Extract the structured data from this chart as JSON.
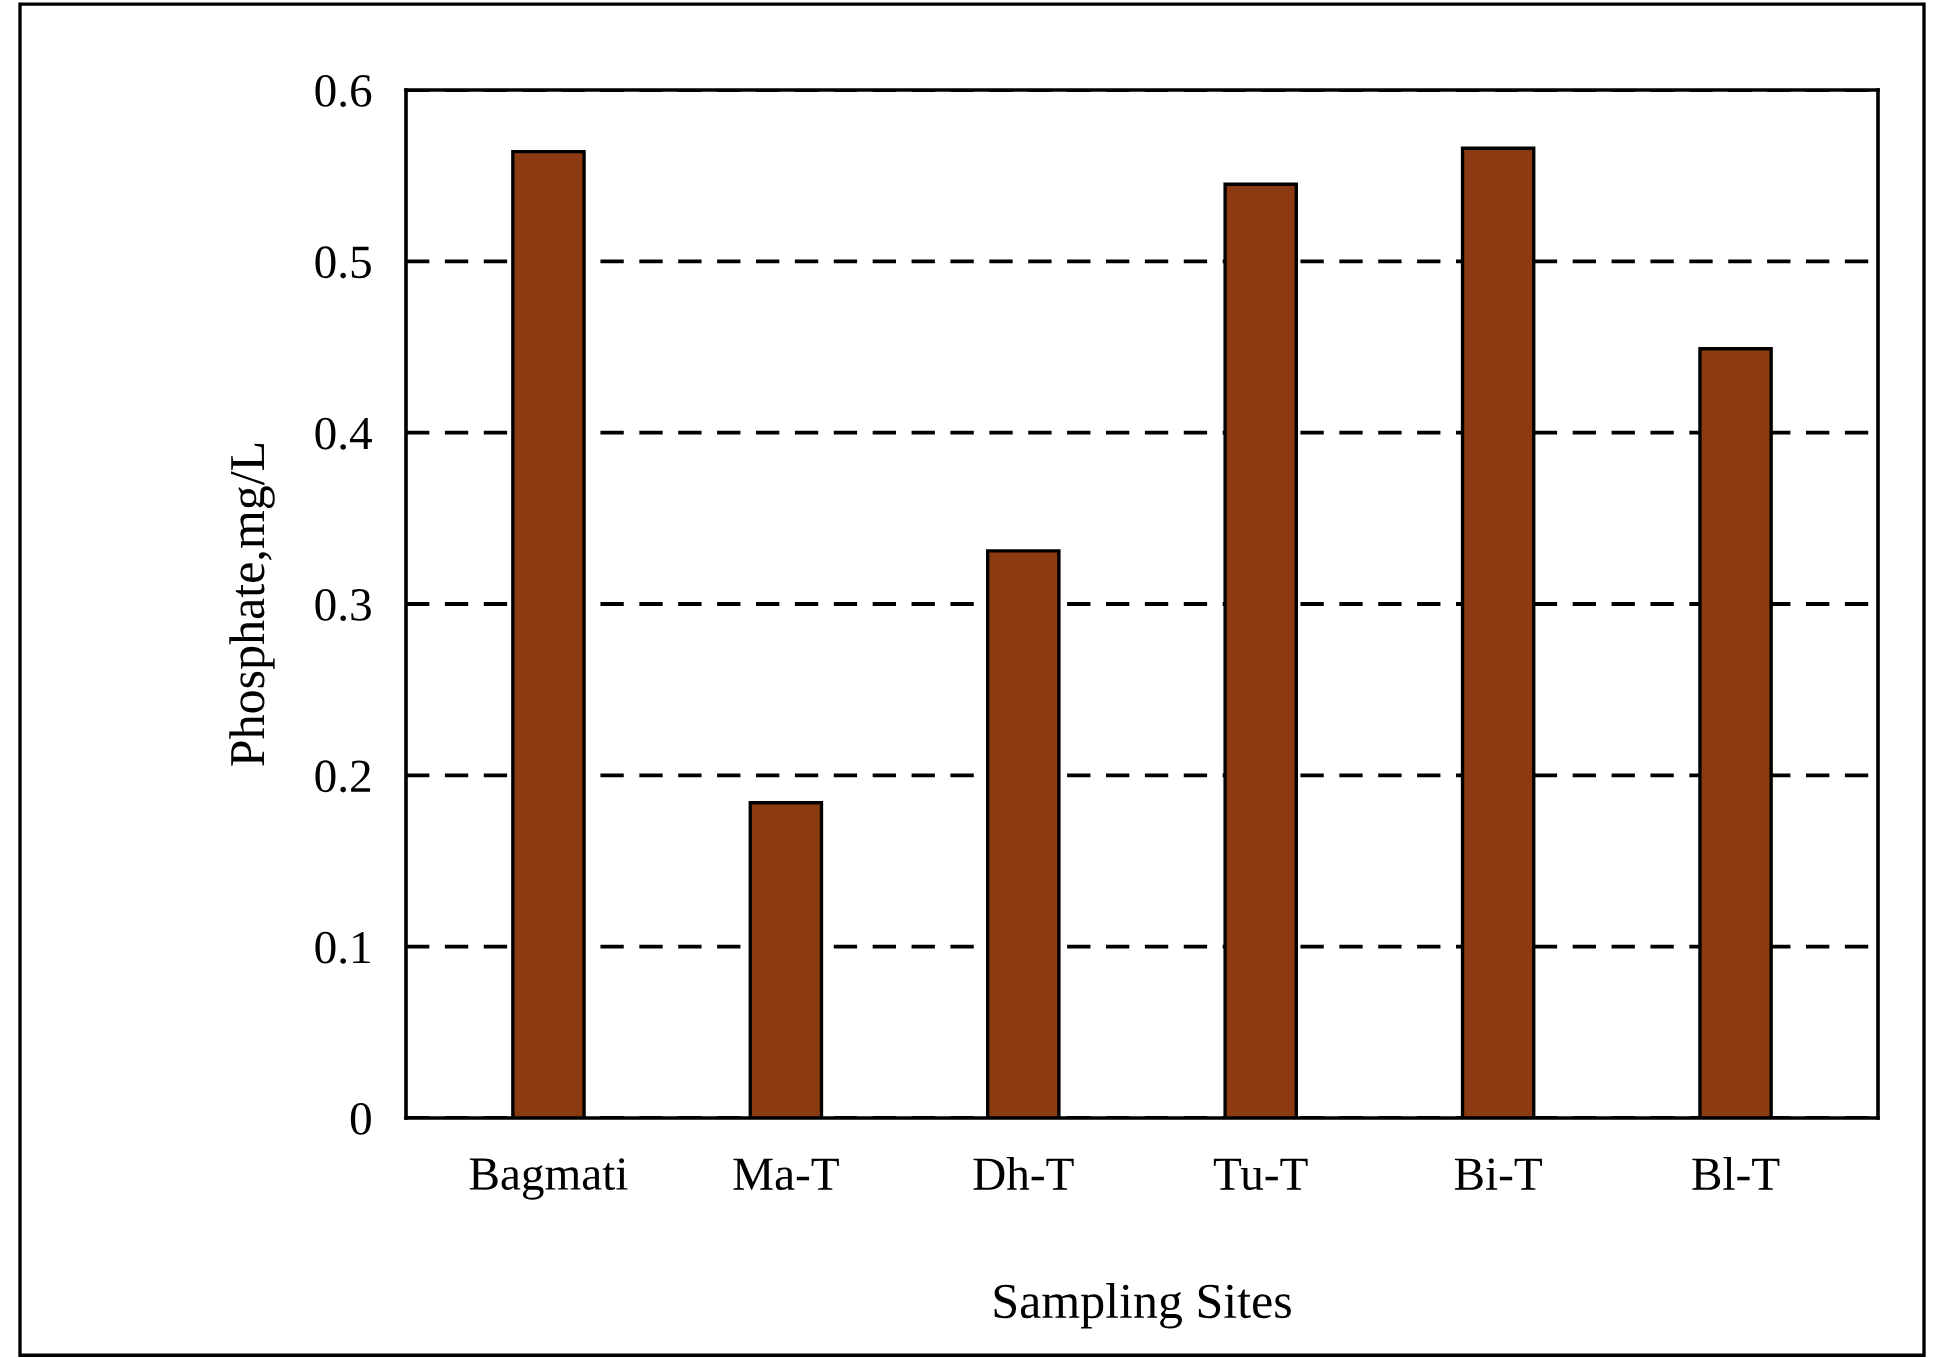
{
  "chart_data": {
    "type": "bar",
    "xlabel": "Sampling Sites",
    "ylabel": "Phosphate,mg/L",
    "categories": [
      "Bagmati",
      "Ma-T",
      "Dh-T",
      "Tu-T",
      "Bi-T",
      "Bl-T"
    ],
    "values": [
      0.564,
      0.184,
      0.331,
      0.545,
      0.566,
      0.449
    ],
    "color": "#8b3a12",
    "ylim": [
      0,
      0.6
    ],
    "yticks": [
      0,
      0.1,
      0.2,
      0.3,
      0.4,
      0.5,
      0.6
    ],
    "grid": "y",
    "line_style": "dashed"
  }
}
